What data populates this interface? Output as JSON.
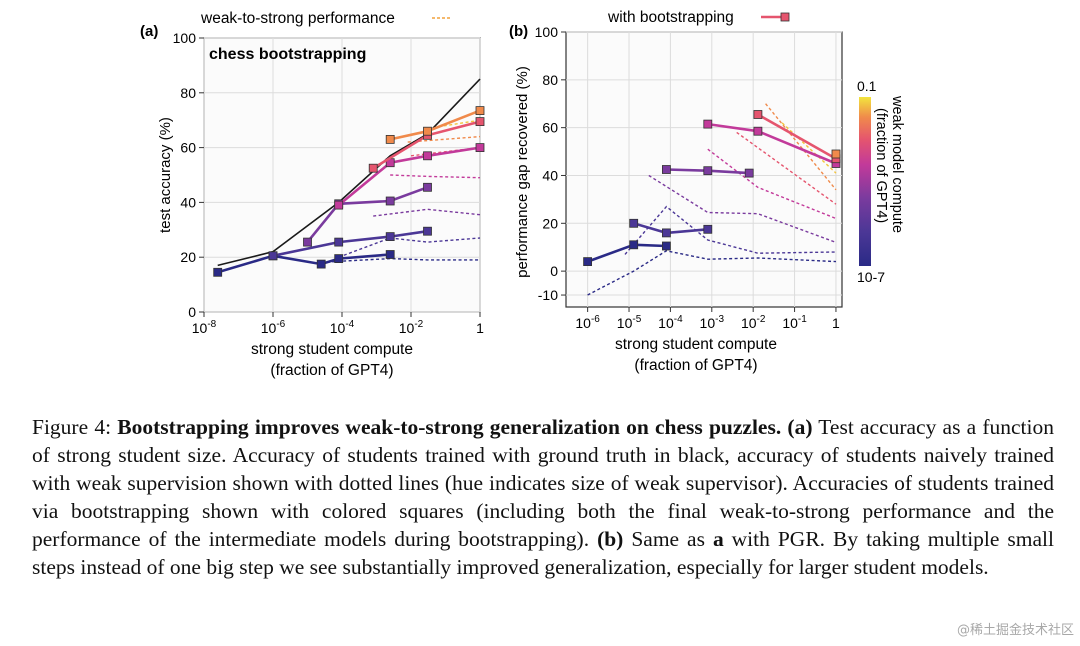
{
  "figure": {
    "legend_a": "weak-to-strong performance",
    "legend_b": "with bootstrapping",
    "colorbar": {
      "title_line1": "weak model compute",
      "title_line2": "(fraction of GPT4)",
      "top_label": "0.1",
      "bottom_label": "10-7"
    },
    "weak_colors": [
      "#2a2a86",
      "#4b3796",
      "#7a3b9e",
      "#c23a9a",
      "#e5556e",
      "#f08a4b",
      "#f2c53d"
    ]
  },
  "chart_data": [
    {
      "id": "a",
      "type": "line",
      "panel_label": "(a)",
      "inner_title": "chess bootstrapping",
      "xlabel_line1": "strong student compute",
      "xlabel_line2": "(fraction of GPT4)",
      "ylabel": "test accuracy (%)",
      "xscale": "log",
      "xlim": [
        1e-08,
        1
      ],
      "ylim": [
        0,
        100
      ],
      "xticks": [
        1e-08,
        1e-06,
        0.0001,
        0.01,
        1
      ],
      "xtick_labels": [
        "10-8",
        "10-6",
        "10-4",
        "10-2",
        "1"
      ],
      "yticks": [
        0,
        20,
        40,
        60,
        80,
        100
      ],
      "ytick_labels": [
        "0",
        "20",
        "40",
        "60",
        "80",
        "100"
      ],
      "grid": true,
      "ground_truth": {
        "color": "#1a1a1a",
        "points": [
          [
            2.5e-08,
            17
          ],
          [
            1e-06,
            22
          ],
          [
            8e-05,
            40
          ],
          [
            0.0025,
            57
          ],
          [
            0.03,
            65
          ],
          [
            1,
            85
          ]
        ]
      },
      "bootstrap_series": [
        {
          "color_index": 0,
          "points": [
            [
              2.5e-08,
              14.5
            ],
            [
              1e-06,
              20.5
            ],
            [
              2.5e-05,
              17.5
            ],
            [
              8e-05,
              19.5
            ],
            [
              0.0025,
              21
            ]
          ]
        },
        {
          "color_index": 1,
          "points": [
            [
              1e-06,
              20.5
            ],
            [
              8e-05,
              25.5
            ],
            [
              0.0025,
              27.5
            ],
            [
              0.03,
              29.5
            ]
          ]
        },
        {
          "color_index": 2,
          "points": [
            [
              1e-05,
              25.5
            ],
            [
              8e-05,
              39.5
            ],
            [
              0.0025,
              40.5
            ],
            [
              0.03,
              45.5
            ]
          ]
        },
        {
          "color_index": 3,
          "points": [
            [
              8e-05,
              39
            ],
            [
              0.0025,
              54.5
            ],
            [
              0.03,
              57
            ],
            [
              1,
              60
            ]
          ]
        },
        {
          "color_index": 4,
          "points": [
            [
              0.0008,
              52.5
            ],
            [
              0.03,
              64.5
            ],
            [
              1,
              69.5
            ]
          ]
        },
        {
          "color_index": 5,
          "points": [
            [
              0.0025,
              63
            ],
            [
              0.03,
              66
            ],
            [
              1,
              73.5
            ]
          ]
        }
      ],
      "naive_series": [
        {
          "color_index": 0,
          "points": [
            [
              2.5e-05,
              18
            ],
            [
              8e-05,
              18.5
            ],
            [
              0.0025,
              19.5
            ],
            [
              0.03,
              19
            ],
            [
              1,
              19
            ]
          ]
        },
        {
          "color_index": 1,
          "points": [
            [
              8e-05,
              20
            ],
            [
              0.0025,
              27
            ],
            [
              0.03,
              25.5
            ],
            [
              1,
              27
            ]
          ]
        },
        {
          "color_index": 2,
          "points": [
            [
              0.0008,
              35
            ],
            [
              0.03,
              37.5
            ],
            [
              1,
              35.5
            ]
          ]
        },
        {
          "color_index": 3,
          "points": [
            [
              0.0025,
              50
            ],
            [
              0.03,
              49.5
            ],
            [
              1,
              49
            ]
          ]
        },
        {
          "color_index": 4,
          "points": [
            [
              0.01,
              57
            ],
            [
              1,
              60
            ]
          ]
        },
        {
          "color_index": 5,
          "points": [
            [
              0.008,
              62
            ],
            [
              1,
              64
            ]
          ]
        },
        {
          "color_index": 6,
          "points": [
            [
              0.03,
              67
            ],
            [
              1,
              70
            ]
          ]
        }
      ]
    },
    {
      "id": "b",
      "type": "line",
      "panel_label": "(b)",
      "xlabel_line1": "strong student compute",
      "xlabel_line2": "(fraction of GPT4)",
      "ylabel": "performance gap recovered (%)",
      "xscale": "log",
      "xlim": [
        3e-07,
        1.4
      ],
      "ylim": [
        -15,
        100
      ],
      "xticks": [
        1e-06,
        1e-05,
        0.0001,
        0.001,
        0.01,
        0.1,
        1
      ],
      "xtick_labels": [
        "10-6",
        "10-5",
        "10-4",
        "10-3",
        "10-2",
        "10-1",
        "1"
      ],
      "yticks": [
        -10,
        0,
        20,
        40,
        60,
        80,
        100
      ],
      "ytick_labels": [
        "-10",
        "0",
        "20",
        "40",
        "60",
        "80",
        "100"
      ],
      "grid": true,
      "bootstrap_series": [
        {
          "color_index": 0,
          "points": [
            [
              1e-06,
              4
            ],
            [
              1.3e-05,
              11
            ],
            [
              8e-05,
              10.5
            ]
          ]
        },
        {
          "color_index": 1,
          "points": [
            [
              1.3e-05,
              20
            ],
            [
              8e-05,
              16
            ],
            [
              0.0008,
              17.5
            ]
          ]
        },
        {
          "color_index": 2,
          "points": [
            [
              8e-05,
              42.5
            ],
            [
              0.0008,
              42
            ],
            [
              0.008,
              41
            ]
          ]
        },
        {
          "color_index": 3,
          "points": [
            [
              0.0008,
              61.5
            ],
            [
              0.013,
              58.5
            ],
            [
              1,
              45
            ]
          ]
        },
        {
          "color_index": 4,
          "points": [
            [
              0.013,
              65.5
            ],
            [
              1,
              47
            ]
          ]
        },
        {
          "color_index": 5,
          "points": [
            [
              1,
              49
            ]
          ]
        }
      ],
      "naive_series": [
        {
          "color_index": 0,
          "points": [
            [
              1e-06,
              -10
            ],
            [
              1.3e-05,
              0
            ],
            [
              8e-05,
              8.5
            ],
            [
              0.0008,
              5
            ],
            [
              0.013,
              5.5
            ],
            [
              1,
              4
            ]
          ]
        },
        {
          "color_index": 1,
          "points": [
            [
              8e-06,
              7
            ],
            [
              8e-05,
              27
            ],
            [
              0.0008,
              13
            ],
            [
              0.013,
              7.5
            ],
            [
              1,
              8
            ]
          ]
        },
        {
          "color_index": 2,
          "points": [
            [
              3e-05,
              40
            ],
            [
              0.0008,
              24.5
            ],
            [
              0.013,
              24
            ],
            [
              1,
              12
            ]
          ]
        },
        {
          "color_index": 3,
          "points": [
            [
              0.0008,
              51
            ],
            [
              0.013,
              35
            ],
            [
              1,
              22
            ]
          ]
        },
        {
          "color_index": 4,
          "points": [
            [
              0.004,
              58
            ],
            [
              1,
              28
            ]
          ]
        },
        {
          "color_index": 5,
          "points": [
            [
              0.02,
              70
            ],
            [
              1,
              34
            ]
          ]
        },
        {
          "color_index": 6,
          "points": [
            [
              0.05,
              62
            ],
            [
              1,
              41
            ]
          ]
        }
      ]
    }
  ],
  "caption": {
    "prefix": "Figure 4: ",
    "bold_title": "Bootstrapping improves weak-to-strong generalization on chess puzzles.",
    "label_a": "(a)",
    "text_a": " Test accuracy as a function of strong student size. Accuracy of students trained with ground truth in black, accuracy of students naively trained with weak supervision shown with dotted lines (hue indicates size of weak supervisor). Accuracies of students trained via bootstrapping shown with colored squares (including both the final weak-to-strong performance and the performance of the intermediate models during bootstrapping). ",
    "label_b": "(b)",
    "text_b1": " Same as ",
    "bold_a": "a",
    "text_b2": " with PGR. By taking multiple small steps instead of one big step we see substantially improved generalization, especially for larger student models."
  },
  "watermark": "@稀土掘金技术社区"
}
